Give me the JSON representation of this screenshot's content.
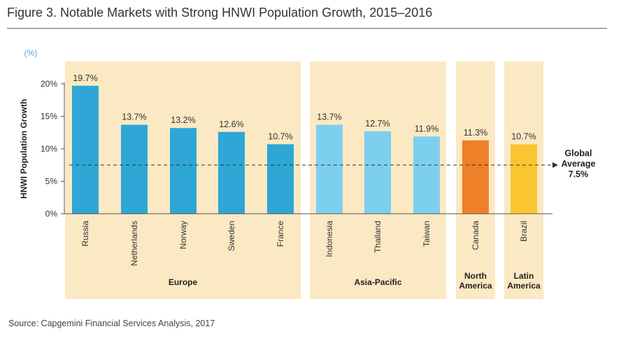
{
  "figure": {
    "title": "Figure 3. Notable Markets with Strong HNWI Population Growth, 2015–2016",
    "source": "Source: Capgemini Financial Services Analysis, 2017"
  },
  "colors": {
    "europe": "#2ea6d6",
    "asia_pacific": "#7dcff0",
    "north_america": "#f07f2a",
    "latin_america": "#fbc532",
    "panel_bg": "#fbe9c3",
    "accent": "#4a9fd5",
    "text": "#333333"
  },
  "chart_data": {
    "type": "bar",
    "title": "Notable Markets with Strong HNWI Population Growth, 2015–2016",
    "unit_label": "(%)",
    "ylabel": "HNWI Population Growth",
    "ylim": [
      0,
      20
    ],
    "yticks": [
      0,
      5,
      10,
      15,
      20
    ],
    "ytick_labels": [
      "0%",
      "5%",
      "10%",
      "15%",
      "20%"
    ],
    "categories": [
      "Russia",
      "Netherlands",
      "Norway",
      "Sweden",
      "France",
      "Indonesia",
      "Thailand",
      "Taiwan",
      "Canada",
      "Brazil"
    ],
    "values": [
      19.7,
      13.7,
      13.2,
      12.6,
      10.7,
      13.7,
      12.7,
      11.9,
      11.3,
      10.7
    ],
    "value_labels": [
      "19.7%",
      "13.7%",
      "13.2%",
      "12.6%",
      "10.7%",
      "13.7%",
      "12.7%",
      "11.9%",
      "11.3%",
      "10.7%"
    ],
    "groups": [
      {
        "key": "europe",
        "name": "Europe",
        "name_lines": [
          "Europe"
        ],
        "count": 5
      },
      {
        "key": "asia_pacific",
        "name": "Asia-Pacific",
        "name_lines": [
          "Asia-Pacific"
        ],
        "count": 3
      },
      {
        "key": "north_america",
        "name": "North America",
        "name_lines": [
          "North",
          "America"
        ],
        "count": 1
      },
      {
        "key": "latin_america",
        "name": "Latin America",
        "name_lines": [
          "Latin",
          "America"
        ],
        "count": 1
      }
    ],
    "reference_line": {
      "value": 7.5,
      "label_lines": [
        "Global",
        "Average",
        "7.5%"
      ]
    }
  }
}
